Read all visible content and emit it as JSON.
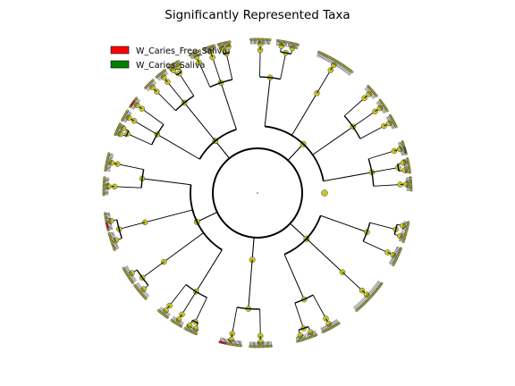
{
  "chart_data": {
    "type": "cladogram",
    "title": "Significantly Represented Taxa",
    "legend": {
      "placement": "top-left",
      "entries": [
        {
          "label": "W_Caries_Free_Saliva",
          "color": "#ff0000"
        },
        {
          "label": "W_Caries_Saliva",
          "color": "#008000"
        }
      ]
    },
    "node_color": "#c8c81e",
    "highlight_color": "#ff0000",
    "enriched_color": "#008000",
    "levels": [
      "root",
      "kingdom",
      "phylum",
      "class",
      "order",
      "family",
      "genus"
    ],
    "phyla": [
      {
        "start_deg": 98,
        "end_deg": 168,
        "classes": 3
      },
      {
        "start_deg": 171,
        "end_deg": 198,
        "classes": 1
      },
      {
        "start_deg": 201,
        "end_deg": 288,
        "classes": 4
      },
      {
        "start_deg": 290,
        "end_deg": 352,
        "classes": 3
      },
      {
        "start_deg": 354,
        "end_deg": 452,
        "classes": 4
      }
    ],
    "highlighted_leaves_deg": [
      193,
      258,
      306,
      355,
      404,
      440
    ],
    "enriched_leaves_deg": [
      74
    ]
  }
}
